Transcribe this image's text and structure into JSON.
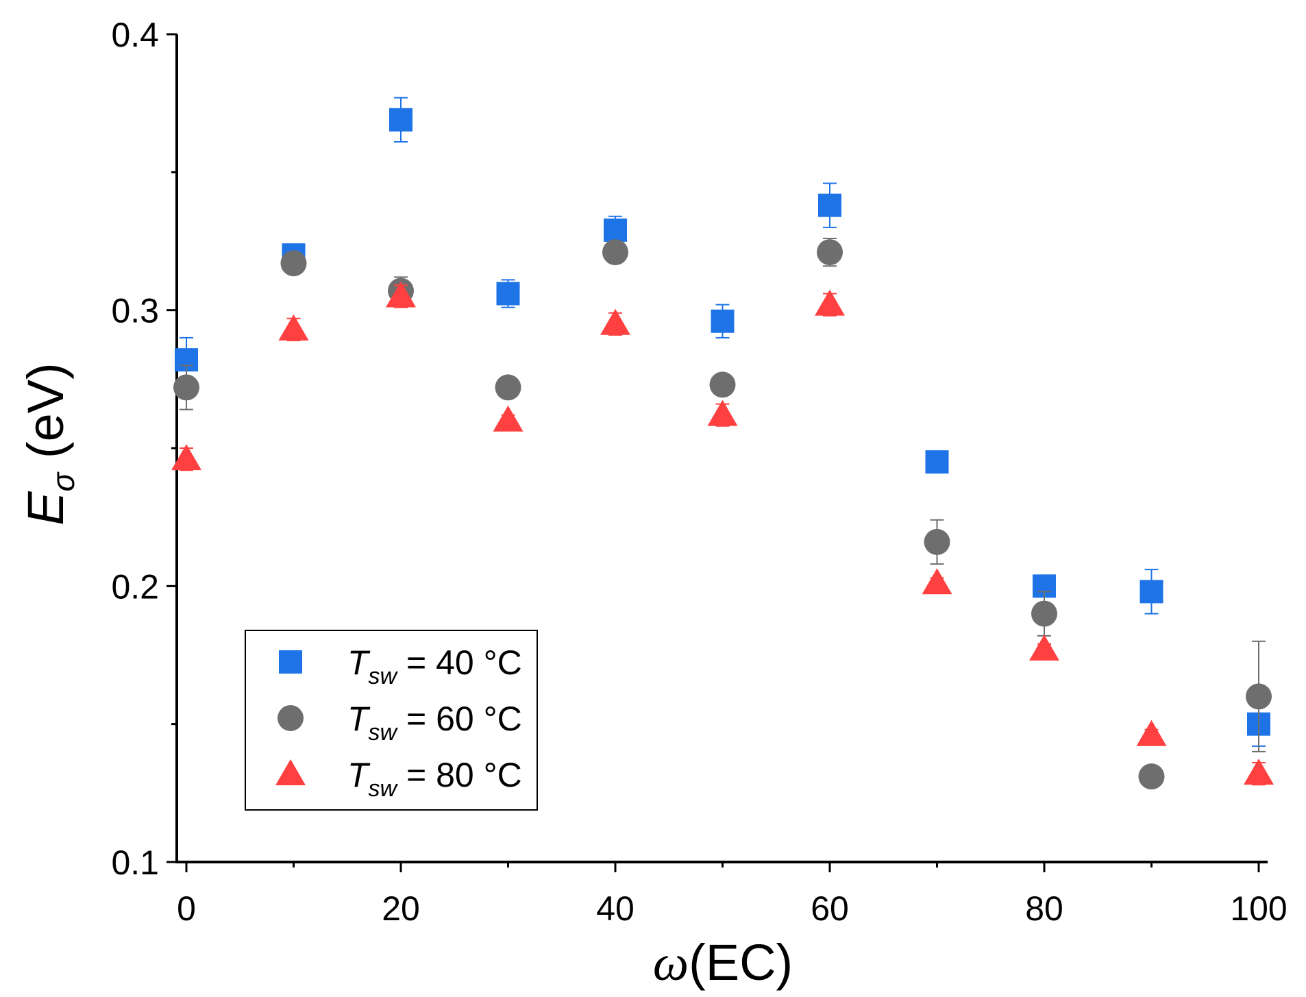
{
  "chart_data": {
    "type": "scatter",
    "title": "",
    "xlabel": {
      "symbol": "ω",
      "rest": "(EC)"
    },
    "ylabel": {
      "symbol": "E",
      "subscript": "σ",
      "rest": " (eV)"
    },
    "xlim": [
      -1,
      101
    ],
    "ylim": [
      0.1,
      0.4
    ],
    "xticks": [
      0,
      20,
      40,
      60,
      80,
      100
    ],
    "xtick_labels": [
      "0",
      "20",
      "40",
      "60",
      "80",
      "100"
    ],
    "yticks": [
      0.1,
      0.2,
      0.3,
      0.4
    ],
    "ytick_labels": [
      "0.1",
      "0.2",
      "0.3",
      "0.4"
    ],
    "legend_position": "bottom-left",
    "series": [
      {
        "name": "T_sw = 40 °C",
        "legend": {
          "T": "T",
          "sub": "sw",
          "rest": " = 40 °C"
        },
        "marker": "square",
        "color": "#1E73E6",
        "x": [
          0,
          10,
          20,
          30,
          40,
          50,
          60,
          70,
          80,
          90,
          100
        ],
        "y": [
          0.282,
          0.32,
          0.369,
          0.306,
          0.329,
          0.296,
          0.338,
          0.245,
          0.2,
          0.198,
          0.15
        ],
        "err": [
          0.008,
          0.003,
          0.008,
          0.005,
          0.005,
          0.006,
          0.008,
          0.002,
          0.002,
          0.008,
          0.008
        ]
      },
      {
        "name": "T_sw = 60 °C",
        "legend": {
          "T": "T",
          "sub": "sw",
          "rest": " = 60 °C"
        },
        "marker": "circle",
        "color": "#6E6E6E",
        "x": [
          0,
          10,
          20,
          30,
          40,
          50,
          60,
          70,
          80,
          90,
          100
        ],
        "y": [
          0.272,
          0.317,
          0.307,
          0.272,
          0.321,
          0.273,
          0.321,
          0.216,
          0.19,
          0.131,
          0.16
        ],
        "err": [
          0.008,
          0.002,
          0.005,
          0.002,
          0.002,
          0.002,
          0.005,
          0.008,
          0.008,
          0.002,
          0.02
        ]
      },
      {
        "name": "T_sw = 80 °C",
        "legend": {
          "T": "T",
          "sub": "sw",
          "rest": " = 80 °C"
        },
        "marker": "triangle",
        "color": "#FF4040",
        "x": [
          0,
          10,
          20,
          30,
          40,
          50,
          60,
          70,
          80,
          90,
          100
        ],
        "y": [
          0.246,
          0.293,
          0.305,
          0.26,
          0.295,
          0.262,
          0.302,
          0.201,
          0.177,
          0.146,
          0.132
        ],
        "err": [
          0.004,
          0.004,
          0.004,
          0.002,
          0.004,
          0.004,
          0.004,
          0.002,
          0.002,
          0.002,
          0.004
        ]
      }
    ]
  }
}
